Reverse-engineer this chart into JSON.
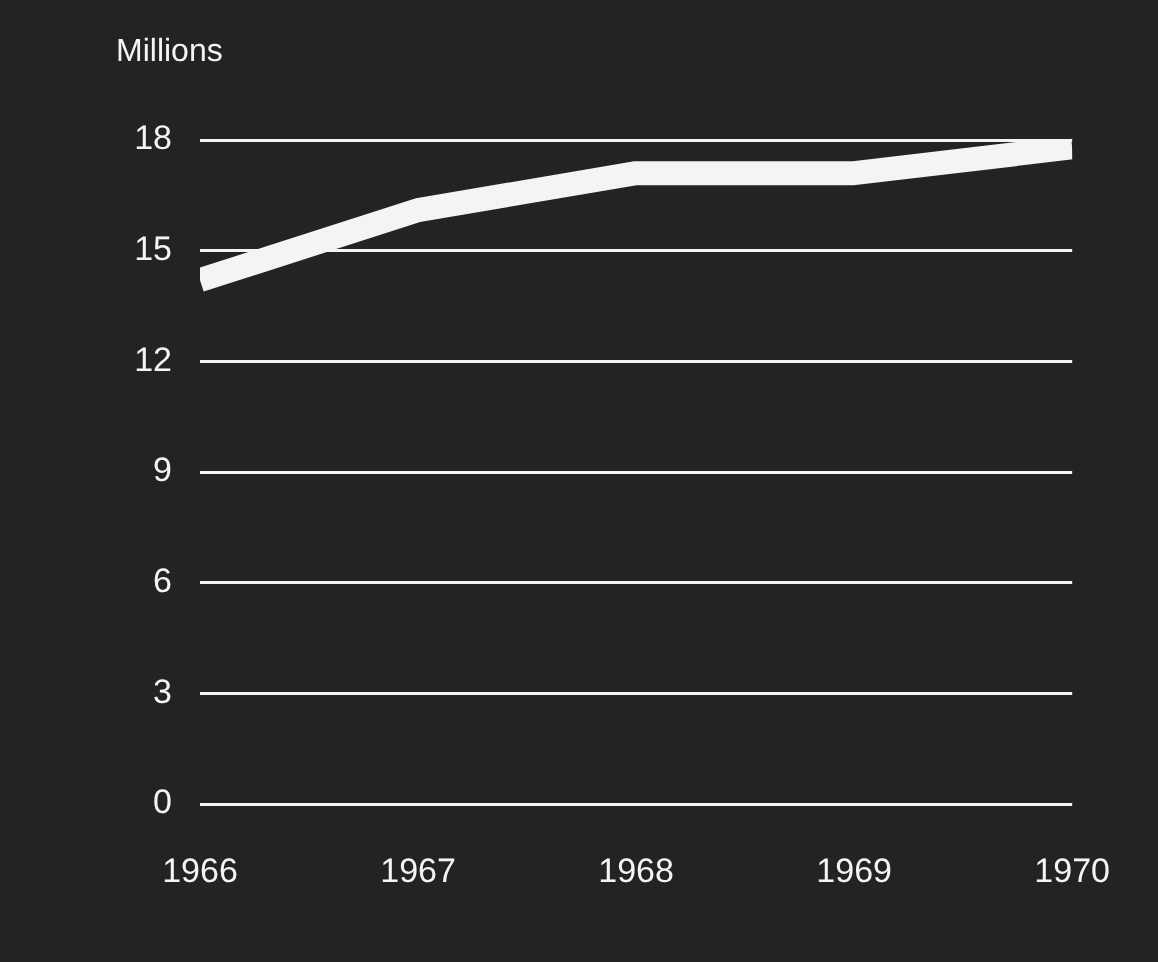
{
  "chart_data": {
    "type": "line",
    "ylabel": "Millions",
    "x": [
      1966,
      1967,
      1968,
      1969,
      1970
    ],
    "series": [
      {
        "color": "#f4f4f4",
        "values": [
          14.2,
          16.1,
          17.1,
          17.1,
          17.8
        ]
      }
    ],
    "xlim": [
      1966,
      1970
    ],
    "xticks": [
      1966,
      1967,
      1968,
      1969,
      1970
    ],
    "ylim": [
      0,
      18
    ],
    "yticks": [
      0,
      3,
      6,
      9,
      12,
      15,
      18
    ],
    "grid": "y",
    "legend": false,
    "marker": "none",
    "line_style": "solid"
  }
}
